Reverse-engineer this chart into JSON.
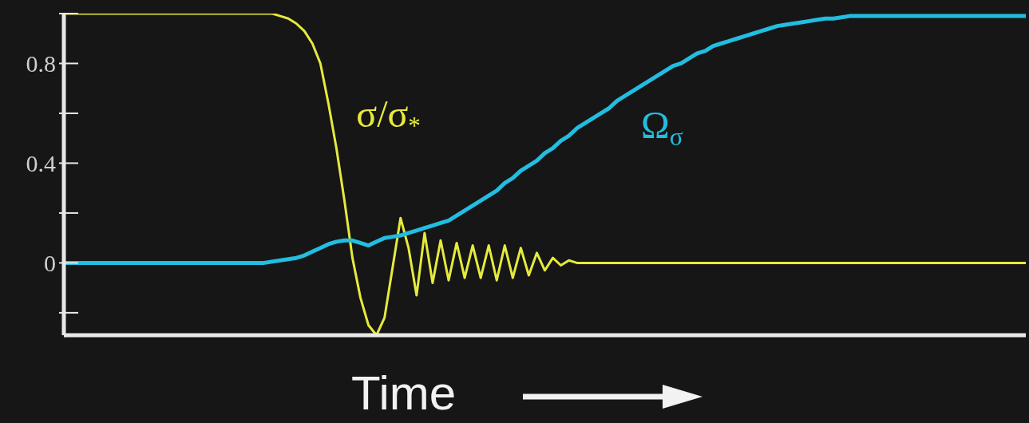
{
  "chart_data": {
    "type": "line",
    "xlabel": "Time",
    "categories": [
      null,
      null,
      null,
      null,
      null,
      null,
      null,
      null,
      null,
      null,
      null,
      null,
      null,
      null,
      null,
      null,
      null,
      null,
      null,
      null,
      null,
      null,
      null,
      null,
      null,
      null,
      null,
      null,
      null,
      null,
      null,
      null,
      null,
      null,
      null,
      null,
      null,
      null,
      null,
      null,
      null,
      null,
      null,
      null,
      null,
      null,
      null,
      null,
      null,
      null,
      null,
      null,
      null,
      null,
      null,
      null,
      null,
      null,
      null,
      null,
      null,
      null,
      null,
      null,
      null,
      null,
      null,
      null,
      null,
      null,
      null,
      null,
      null,
      null,
      null,
      null,
      null,
      null,
      null,
      null,
      null,
      null,
      null,
      null,
      null,
      null,
      null,
      null,
      null,
      null,
      null,
      null,
      null,
      null,
      null,
      null,
      null,
      null,
      null,
      null,
      null,
      null,
      null,
      null,
      null,
      null,
      null,
      null,
      null,
      null,
      null,
      null,
      null,
      null,
      null,
      null,
      null,
      null,
      null,
      null,
      null
    ],
    "series": [
      {
        "name": "σ/σ$_{*}$",
        "color": "#e6ea3c",
        "values": [
          1,
          1,
          1,
          1,
          1,
          1,
          1,
          1,
          1,
          1,
          1,
          1,
          1,
          1,
          1,
          1,
          1,
          1,
          1,
          1,
          1,
          1,
          1,
          1,
          1,
          1,
          1,
          0.99,
          0.98,
          0.96,
          0.93,
          0.88,
          0.8,
          0.64,
          0.46,
          0.25,
          0.02,
          -0.14,
          -0.25,
          -0.29,
          -0.22,
          -0.02,
          0.18,
          0.06,
          -0.13,
          0.12,
          -0.08,
          0.09,
          -0.07,
          0.08,
          -0.06,
          0.07,
          -0.06,
          0.07,
          -0.07,
          0.07,
          -0.06,
          0.06,
          -0.05,
          0.04,
          -0.03,
          0.02,
          -0.01,
          0.01,
          0,
          0,
          0,
          0,
          0,
          0,
          0,
          0,
          0,
          0,
          0,
          0,
          0,
          0,
          0,
          0,
          0,
          0,
          0,
          0,
          0,
          0,
          0,
          0,
          0,
          0,
          0,
          0,
          0,
          0,
          0,
          0,
          0,
          0,
          0,
          0,
          0,
          0,
          0,
          0,
          0,
          0,
          0,
          0,
          0,
          0,
          0,
          0,
          0,
          0,
          0,
          0,
          0,
          0,
          0,
          0,
          0
        ]
      },
      {
        "name": "Ω$_{σ}$",
        "color": "#22bde0",
        "values": [
          0,
          0,
          0,
          0,
          0,
          0,
          0,
          0,
          0,
          0,
          0,
          0,
          0,
          0,
          0,
          0,
          0,
          0,
          0,
          0,
          0,
          0,
          0,
          0,
          0,
          0,
          0.005,
          0.01,
          0.015,
          0.02,
          0.03,
          0.045,
          0.06,
          0.075,
          0.085,
          0.09,
          0.09,
          0.08,
          0.07,
          0.085,
          0.1,
          0.105,
          0.11,
          0.12,
          0.13,
          0.14,
          0.15,
          0.16,
          0.17,
          0.19,
          0.21,
          0.23,
          0.25,
          0.27,
          0.29,
          0.32,
          0.34,
          0.37,
          0.39,
          0.41,
          0.44,
          0.46,
          0.49,
          0.51,
          0.54,
          0.56,
          0.58,
          0.6,
          0.62,
          0.65,
          0.67,
          0.69,
          0.71,
          0.73,
          0.75,
          0.77,
          0.79,
          0.8,
          0.82,
          0.84,
          0.85,
          0.87,
          0.88,
          0.89,
          0.9,
          0.91,
          0.92,
          0.93,
          0.94,
          0.95,
          0.955,
          0.96,
          0.965,
          0.97,
          0.975,
          0.98,
          0.98,
          0.985,
          0.99,
          0.99,
          0.99,
          0.99,
          0.99,
          0.99,
          0.99,
          0.99,
          0.99,
          0.99,
          0.99,
          0.99,
          0.99,
          0.99,
          0.99,
          0.99,
          0.99,
          0.99,
          0.99,
          0.99,
          0.99,
          0.99,
          0.99
        ]
      }
    ],
    "ylim": [
      -0.29,
      1.0
    ],
    "yticks": [
      {
        "value": -0.2,
        "label": null
      },
      0,
      {
        "value": 0.2,
        "label": null
      },
      0.4,
      {
        "value": 0.6,
        "label": null
      },
      0.8,
      {
        "value": 1.0,
        "label": null
      }
    ],
    "tick_labels": "y",
    "marker": "none"
  }
}
